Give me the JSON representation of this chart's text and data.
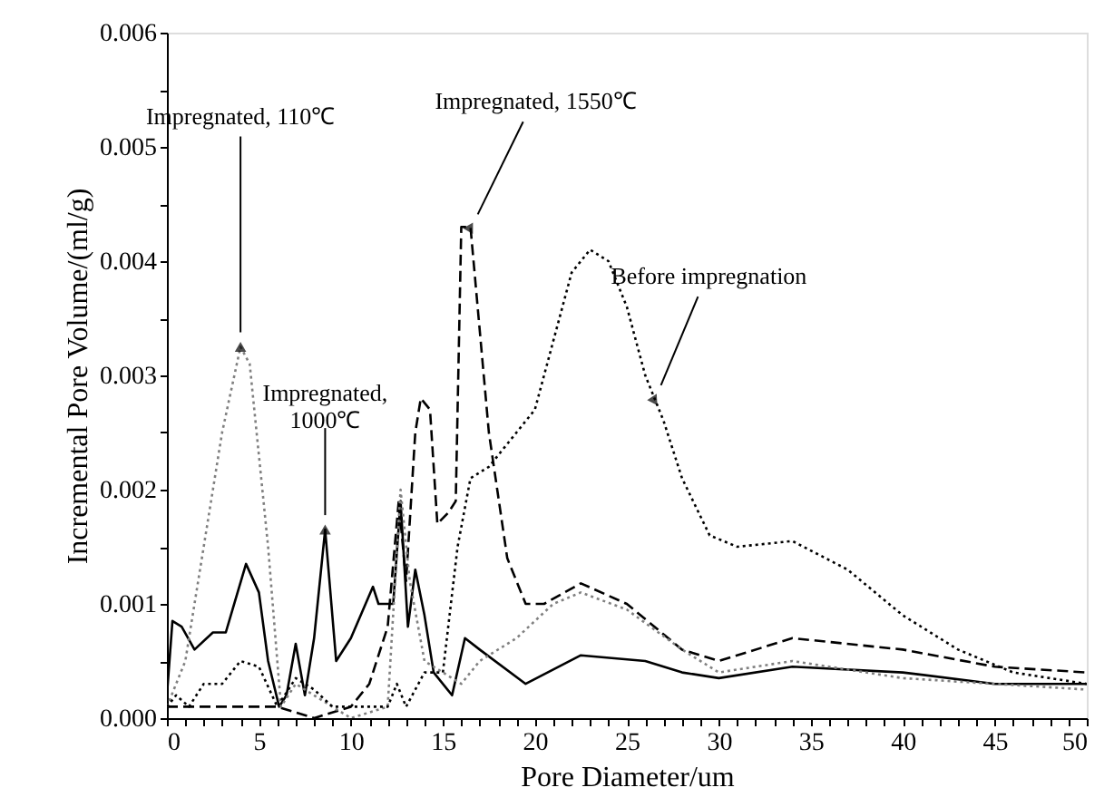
{
  "chart_data": {
    "type": "line",
    "xlabel": "Pore Diameter/um",
    "ylabel": "Incremental Pore Volume/(ml/g)",
    "xlim": [
      0,
      50
    ],
    "ylim": [
      0,
      0.006
    ],
    "xticks": [
      0,
      {
        "value": 1,
        "label": null
      },
      {
        "value": 2,
        "label": null
      },
      {
        "value": 3,
        "label": null
      },
      {
        "value": 4,
        "label": null
      },
      5,
      {
        "value": 6,
        "label": null
      },
      {
        "value": 7,
        "label": null
      },
      {
        "value": 8,
        "label": null
      },
      {
        "value": 9,
        "label": null
      },
      10,
      {
        "value": 11,
        "label": null
      },
      {
        "value": 12,
        "label": null
      },
      {
        "value": 13,
        "label": null
      },
      {
        "value": 14,
        "label": null
      },
      15,
      {
        "value": 16,
        "label": null
      },
      {
        "value": 17,
        "label": null
      },
      {
        "value": 18,
        "label": null
      },
      {
        "value": 19,
        "label": null
      },
      20,
      {
        "value": 21,
        "label": null
      },
      {
        "value": 22,
        "label": null
      },
      {
        "value": 23,
        "label": null
      },
      {
        "value": 24,
        "label": null
      },
      25,
      {
        "value": 26,
        "label": null
      },
      {
        "value": 27,
        "label": null
      },
      {
        "value": 28,
        "label": null
      },
      {
        "value": 29,
        "label": null
      },
      30,
      {
        "value": 31,
        "label": null
      },
      {
        "value": 32,
        "label": null
      },
      {
        "value": 33,
        "label": null
      },
      {
        "value": 34,
        "label": null
      },
      35,
      {
        "value": 36,
        "label": null
      },
      {
        "value": 37,
        "label": null
      },
      {
        "value": 38,
        "label": null
      },
      {
        "value": 39,
        "label": null
      },
      40,
      {
        "value": 41,
        "label": null
      },
      {
        "value": 42,
        "label": null
      },
      {
        "value": 43,
        "label": null
      },
      {
        "value": 44,
        "label": null
      },
      45,
      {
        "value": 46,
        "label": null
      },
      {
        "value": 47,
        "label": null
      },
      {
        "value": 48,
        "label": null
      },
      {
        "value": 49,
        "label": null
      },
      50
    ],
    "yticks": [
      {
        "value": 0,
        "label": "0.000"
      },
      {
        "value": 0.0005,
        "label": null
      },
      {
        "value": 0.001,
        "label": "0.001"
      },
      {
        "value": 0.0015,
        "label": null
      },
      {
        "value": 0.002,
        "label": "0.002"
      },
      {
        "value": 0.0025,
        "label": null
      },
      {
        "value": 0.003,
        "label": "0.003"
      },
      {
        "value": 0.0035,
        "label": null
      },
      {
        "value": 0.004,
        "label": "0.004"
      },
      {
        "value": 0.0045,
        "label": null
      },
      {
        "value": 0.005,
        "label": "0.005"
      },
      {
        "value": 0.0055,
        "label": null
      },
      {
        "value": 0.006,
        "label": "0.006"
      }
    ],
    "grid": false,
    "marker": "none",
    "series": [
      {
        "color": "#000000",
        "line_style": "solid",
        "x": [
          0,
          0.3,
          0.8,
          1.5,
          2.5,
          3.2,
          4.3,
          5,
          5.5,
          6.1,
          6.5,
          7,
          7.5,
          8,
          8.6,
          9.2,
          10,
          11.2,
          11.5,
          12.3,
          12.7,
          13.1,
          13.5,
          14,
          14.5,
          15.5,
          16.2,
          17,
          19.5,
          22.5,
          26,
          28,
          30,
          34,
          40,
          45,
          50
        ],
        "values": [
          0.0002,
          0.00085,
          0.0008,
          0.0006,
          0.00075,
          0.00075,
          0.00135,
          0.0011,
          0.0005,
          0.0001,
          0.0002,
          0.00065,
          0.0002,
          0.0007,
          0.00165,
          0.0005,
          0.0007,
          0.00115,
          0.001,
          0.001,
          0.0019,
          0.0008,
          0.0013,
          0.0009,
          0.0004,
          0.0002,
          0.0007,
          0.0006,
          0.0003,
          0.00055,
          0.0005,
          0.0004,
          0.00035,
          0.00045,
          0.0004,
          0.0003,
          0.0003
        ]
      },
      {
        "color": "#000000",
        "line_style": "dashed",
        "x": [
          0,
          5,
          6,
          8,
          10,
          11,
          12,
          12.6,
          13,
          13.5,
          13.8,
          14.3,
          14.7,
          15.3,
          15.7,
          16,
          16.5,
          17.5,
          18.5,
          19.5,
          20.5,
          22.5,
          25,
          28,
          30,
          34,
          40,
          45,
          50
        ],
        "values": [
          0.0001,
          0.0001,
          0.0001,
          0,
          0.0001,
          0.0003,
          0.0008,
          0.0019,
          0.0012,
          0.0025,
          0.0028,
          0.0027,
          0.0017,
          0.0018,
          0.0019,
          0.0043,
          0.0043,
          0.0025,
          0.0014,
          0.001,
          0.001,
          0.00118,
          0.001,
          0.0006,
          0.0005,
          0.0007,
          0.0006,
          0.00045,
          0.0004
        ]
      },
      {
        "color": "#808080",
        "line_style": "dotted",
        "x": [
          0,
          1,
          2,
          3,
          4,
          4.5,
          5.5,
          6.2,
          7,
          8,
          9,
          10,
          12,
          12.7,
          13.2,
          14,
          16,
          17,
          19,
          21,
          22.5,
          25,
          28,
          30,
          34,
          40,
          45,
          50
        ],
        "values": [
          0.0001,
          0.0005,
          0.0015,
          0.0025,
          0.00325,
          0.0031,
          0.0015,
          0.0001,
          0.0003,
          0.0002,
          0.0001,
          0,
          0.0001,
          0.002,
          0.0012,
          0.0005,
          0.0003,
          0.0005,
          0.0007,
          0.001,
          0.0011,
          0.00095,
          0.0006,
          0.0004,
          0.0005,
          0.00035,
          0.0003,
          0.00025
        ]
      },
      {
        "color": "#000000",
        "line_style": "dotted",
        "x": [
          0,
          0.5,
          1.2,
          2,
          3,
          4,
          5,
          6,
          7,
          8,
          9,
          10,
          12,
          12.5,
          13,
          14,
          15,
          15.8,
          16.5,
          17.5,
          19,
          20,
          21,
          22,
          23,
          24,
          25,
          26,
          27,
          28,
          29.5,
          31,
          34,
          37,
          40,
          43,
          46,
          50
        ],
        "values": [
          0.0001,
          0.0002,
          0.0001,
          0.0003,
          0.0003,
          0.0005,
          0.00045,
          0.0001,
          0.00035,
          0.00025,
          0.0001,
          0.0001,
          0.0001,
          0.0003,
          0.0001,
          0.0004,
          0.0004,
          0.0015,
          0.0021,
          0.0022,
          0.0025,
          0.0027,
          0.0033,
          0.0039,
          0.0041,
          0.004,
          0.0036,
          0.003,
          0.0026,
          0.0021,
          0.0016,
          0.0015,
          0.00155,
          0.0013,
          0.0009,
          0.0006,
          0.0004,
          0.0003
        ]
      }
    ],
    "annotations": [
      {
        "text": "Impregnated, 110℃",
        "x": 4,
        "y": 0.00325
      },
      {
        "text": "Impregnated,\n1000℃",
        "x": 8.6,
        "y": 0.00165
      },
      {
        "text": "Impregnated, 1550℃",
        "x": 16.5,
        "y": 0.0043
      },
      {
        "text": "Before impregnation",
        "x": 26.5,
        "y": 0.0028
      }
    ]
  }
}
